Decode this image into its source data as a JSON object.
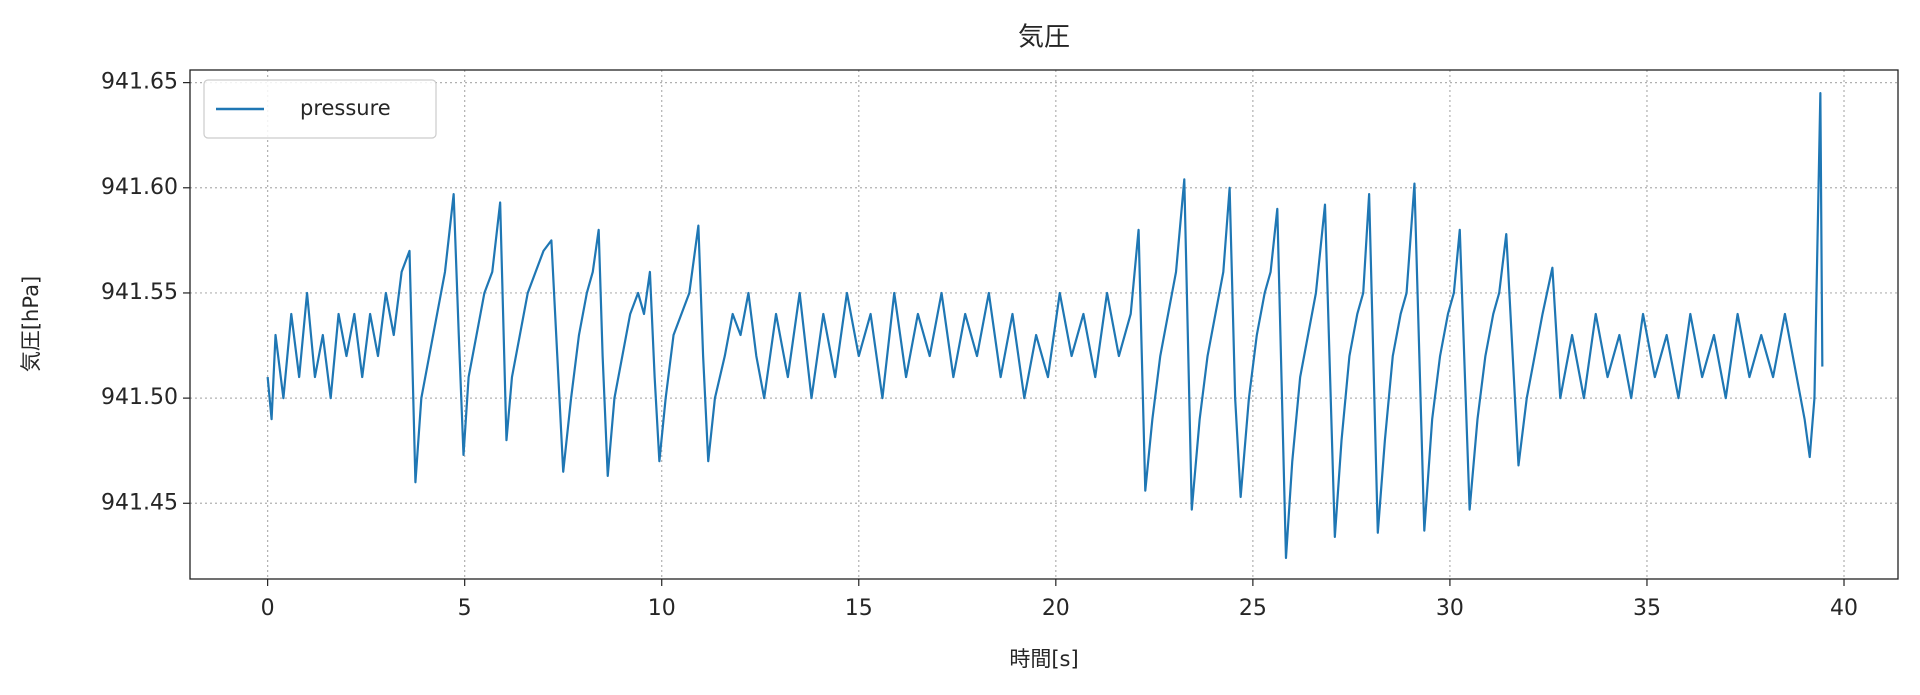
{
  "chart_data": {
    "type": "line",
    "title": "気圧",
    "xlabel": "時間[s]",
    "ylabel": "気圧[hPa]",
    "xlim": [
      -1.97,
      41.37
    ],
    "xticks": [
      0,
      5,
      10,
      15,
      20,
      25,
      30,
      35,
      40
    ],
    "ylim": [
      941.414,
      941.656
    ],
    "yticks": [
      941.45,
      {
        "value": 941.5,
        "label": "941.50"
      },
      941.55,
      {
        "value": 941.6,
        "label": "941.60"
      },
      941.65
    ],
    "grid": true,
    "legend": "upper left",
    "x": [
      0,
      0.1,
      0.2,
      0.4,
      0.6,
      0.8,
      1.0,
      1.2,
      1.4,
      1.6,
      1.8,
      2.0,
      2.2,
      2.4,
      2.6,
      2.8,
      3.0,
      3.2,
      3.4,
      3.6,
      3.75,
      3.9,
      4.1,
      4.3,
      4.5,
      4.72,
      4.85,
      4.97,
      5.1,
      5.3,
      5.5,
      5.7,
      5.9,
      6.06,
      6.2,
      6.4,
      6.6,
      6.8,
      7.0,
      7.2,
      7.35,
      7.5,
      7.7,
      7.9,
      8.1,
      8.25,
      8.4,
      8.5,
      8.63,
      8.8,
      9.0,
      9.2,
      9.4,
      9.55,
      9.7,
      9.82,
      9.94,
      10.1,
      10.3,
      10.5,
      10.7,
      10.93,
      11.05,
      11.18,
      11.35,
      11.6,
      11.8,
      12.0,
      12.2,
      12.4,
      12.6,
      12.9,
      13.2,
      13.5,
      13.8,
      14.1,
      14.4,
      14.7,
      15.0,
      15.3,
      15.6,
      15.9,
      16.2,
      16.5,
      16.8,
      17.1,
      17.4,
      17.7,
      18.0,
      18.3,
      18.6,
      18.9,
      19.2,
      19.5,
      19.8,
      20.1,
      20.4,
      20.7,
      21.0,
      21.3,
      21.6,
      21.9,
      22.1,
      22.27,
      22.45,
      22.65,
      22.85,
      23.05,
      23.26,
      23.45,
      23.65,
      23.85,
      24.05,
      24.25,
      24.41,
      24.55,
      24.69,
      24.9,
      25.1,
      25.3,
      25.45,
      25.62,
      25.84,
      26.0,
      26.2,
      26.4,
      26.6,
      26.83,
      27.08,
      27.25,
      27.45,
      27.65,
      27.8,
      27.95,
      28.17,
      28.35,
      28.55,
      28.75,
      28.9,
      29.1,
      29.35,
      29.55,
      29.75,
      29.95,
      30.1,
      30.25,
      30.5,
      30.7,
      30.9,
      31.1,
      31.25,
      31.43,
      31.74,
      31.95,
      32.15,
      32.35,
      32.6,
      32.8,
      33.1,
      33.4,
      33.7,
      34.0,
      34.3,
      34.6,
      34.9,
      35.2,
      35.5,
      35.8,
      36.1,
      36.4,
      36.7,
      37.0,
      37.3,
      37.6,
      37.9,
      38.2,
      38.5,
      38.8,
      39.0,
      39.13,
      39.25,
      39.4,
      39.45
    ],
    "series": [
      {
        "name": "pressure",
        "color": "#1f77b4",
        "values": [
          941.51,
          941.49,
          941.53,
          941.5,
          941.54,
          941.51,
          941.55,
          941.51,
          941.53,
          941.5,
          941.54,
          941.52,
          941.54,
          941.51,
          941.54,
          941.52,
          941.55,
          941.53,
          941.56,
          941.57,
          941.46,
          941.5,
          941.52,
          941.54,
          941.56,
          941.597,
          941.53,
          941.473,
          941.51,
          941.53,
          941.55,
          941.56,
          941.593,
          941.48,
          941.51,
          941.53,
          941.55,
          941.56,
          941.57,
          941.575,
          941.52,
          941.465,
          941.5,
          941.53,
          941.55,
          941.56,
          941.58,
          941.52,
          941.463,
          941.5,
          941.52,
          941.54,
          941.55,
          941.54,
          941.56,
          941.51,
          941.47,
          941.5,
          941.53,
          941.54,
          941.55,
          941.582,
          941.52,
          941.47,
          941.5,
          941.52,
          941.54,
          941.53,
          941.55,
          941.52,
          941.5,
          941.54,
          941.51,
          941.55,
          941.5,
          941.54,
          941.51,
          941.55,
          941.52,
          941.54,
          941.5,
          941.55,
          941.51,
          941.54,
          941.52,
          941.55,
          941.51,
          941.54,
          941.52,
          941.55,
          941.51,
          941.54,
          941.5,
          941.53,
          941.51,
          941.55,
          941.52,
          941.54,
          941.51,
          941.55,
          941.52,
          941.54,
          941.58,
          941.456,
          941.49,
          941.52,
          941.54,
          941.56,
          941.604,
          941.447,
          941.49,
          941.52,
          941.54,
          941.56,
          941.6,
          941.5,
          941.453,
          941.5,
          941.53,
          941.55,
          941.56,
          941.59,
          941.424,
          941.47,
          941.51,
          941.53,
          941.55,
          941.592,
          941.434,
          941.48,
          941.52,
          941.54,
          941.55,
          941.597,
          941.436,
          941.48,
          941.52,
          941.54,
          941.55,
          941.602,
          941.437,
          941.49,
          941.52,
          941.54,
          941.55,
          941.58,
          941.447,
          941.49,
          941.52,
          941.54,
          941.55,
          941.578,
          941.468,
          941.5,
          941.52,
          941.54,
          941.562,
          941.5,
          941.53,
          941.5,
          941.54,
          941.51,
          941.53,
          941.5,
          941.54,
          941.51,
          941.53,
          941.5,
          941.54,
          941.51,
          941.53,
          941.5,
          941.54,
          941.51,
          941.53,
          941.51,
          941.54,
          941.51,
          941.49,
          941.472,
          941.5,
          941.645,
          941.515
        ]
      }
    ]
  }
}
